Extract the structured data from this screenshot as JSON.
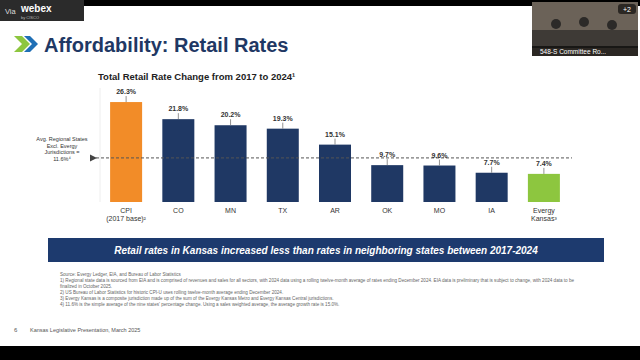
{
  "slide": {
    "title": "Affordability: Retail Rates",
    "banner": "Retail rates in Kansas increased less than rates in neighboring states between 2017-2024",
    "footnotes": [
      "Source: Evergy Ledger, EIA, and Bureau of Labor Statistics",
      "1) Regional state data is sourced from EIA and is comprised of revenues and sales for all sectors, with 2024 data using a rolling twelve-month average of rates ending December 2024. EIA data is preliminary that is subject to change, with 2024 data to be finalized in October 2025.",
      "2) US Bureau of Labor Statistics for historic CPI-U uses rolling twelve-month average ending December 2024.",
      "3) Evergy Kansas is a composite jurisdiction made up of the sum of the Evergy Kansas Metro and Evergy Kansas Central jurisdictions.",
      "4) 11.6% is the simple average of the nine states' percentage change. Using a sales weighted average, the average growth rate is 15.0%."
    ],
    "page_number": 6,
    "footer": "Kansas Legislative Presentation, March 2025",
    "webex": {
      "via": "Via",
      "brand": "webex",
      "by": "by CISCO",
      "room": "548-S Committee Ro...",
      "participants": "+2"
    }
  },
  "chart_data": {
    "type": "bar",
    "title": "Total Retail Rate Change from 2017 to 2024¹",
    "categories": [
      "CPI (2017 base)²",
      "CO",
      "MN",
      "TX",
      "AR",
      "OK",
      "MO",
      "IA",
      "Evergy Kansas³"
    ],
    "values": [
      26.3,
      21.8,
      20.2,
      19.3,
      15.1,
      9.7,
      9.6,
      7.7,
      7.4
    ],
    "value_labels": [
      "26.3%",
      "21.8%",
      "20.2%",
      "19.3%",
      "15.1%",
      "9.7%",
      "9.6%",
      "7.7%",
      "7.4%"
    ],
    "colors": [
      "#f28c28",
      "#1f3864",
      "#1f3864",
      "#1f3864",
      "#1f3864",
      "#1f3864",
      "#1f3864",
      "#1f3864",
      "#8dc63f"
    ],
    "ylim": [
      0,
      30
    ],
    "data_labels": true,
    "tick_labels": "x",
    "reference_line": {
      "value": 11.6,
      "label": "Avg. Regional States Excl. Evergy Jurisdictions = 11.6%⁴"
    }
  }
}
